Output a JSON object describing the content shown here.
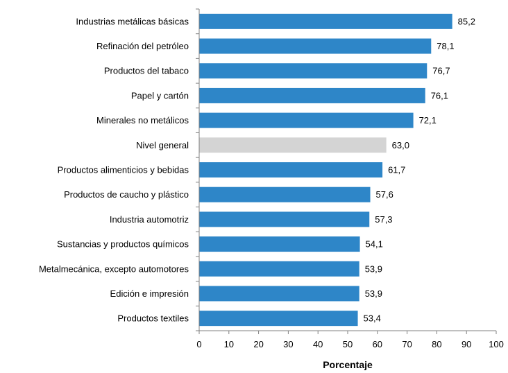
{
  "chart_data": {
    "type": "bar",
    "orientation": "horizontal",
    "categories": [
      "Industrias metálicas básicas",
      "Refinación del petróleo",
      "Productos del tabaco",
      "Papel y cartón",
      "Minerales no metálicos",
      "Nivel general",
      "Productos alimenticios y bebidas",
      "Productos de caucho y plástico",
      "Industria automotriz",
      "Sustancias y productos químicos",
      "Metalmecánica, excepto automotores",
      "Edición e impresión",
      "Productos textiles"
    ],
    "values": [
      85.2,
      78.1,
      76.7,
      76.1,
      72.1,
      63.0,
      61.7,
      57.6,
      57.3,
      54.1,
      53.9,
      53.9,
      53.4
    ],
    "value_labels": [
      "85,2",
      "78,1",
      "76,7",
      "76,1",
      "72,1",
      "63,0",
      "61,7",
      "57,6",
      "57,3",
      "54,1",
      "53,9",
      "53,9",
      "53,4"
    ],
    "highlight_category": "Nivel general",
    "xlabel": "Porcentaje",
    "ylabel": "",
    "xlim": [
      0,
      100
    ],
    "xticks": [
      0,
      10,
      20,
      30,
      40,
      50,
      60,
      70,
      80,
      90,
      100
    ],
    "xtick_labels": [
      "0",
      "10",
      "20",
      "30",
      "40",
      "50",
      "60",
      "70",
      "80",
      "90",
      "100"
    ],
    "grid": false,
    "colors": {
      "bar": "#2E86C8",
      "highlight": "#D4D4D4",
      "axis": "#808080"
    }
  }
}
